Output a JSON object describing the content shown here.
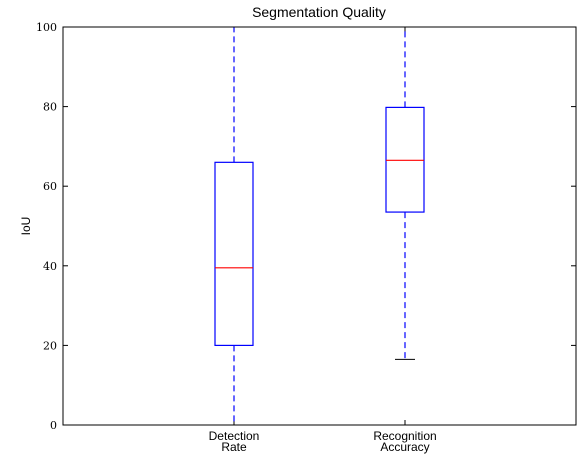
{
  "chart_data": {
    "type": "box",
    "title": "Segmentation Quality",
    "xlabel": "",
    "ylabel": "IoU",
    "ylim": [
      0,
      100
    ],
    "yticks": [
      0,
      20,
      40,
      60,
      80,
      100
    ],
    "grid": false,
    "categories": [
      [
        "Detection",
        "Rate"
      ],
      [
        "Recognition",
        "Accuracy"
      ]
    ],
    "boxes": [
      {
        "whisker_low": 0,
        "q1": 20,
        "median": 39.5,
        "q3": 66,
        "whisker_high": 100
      },
      {
        "whisker_low": 16.5,
        "q1": 53.5,
        "median": 66.5,
        "q3": 79.8,
        "whisker_high": 100
      }
    ],
    "colors": {
      "box": "#0000ff",
      "median": "#ff0000",
      "whisker_cap": "#000000",
      "axes": "#000000"
    }
  }
}
